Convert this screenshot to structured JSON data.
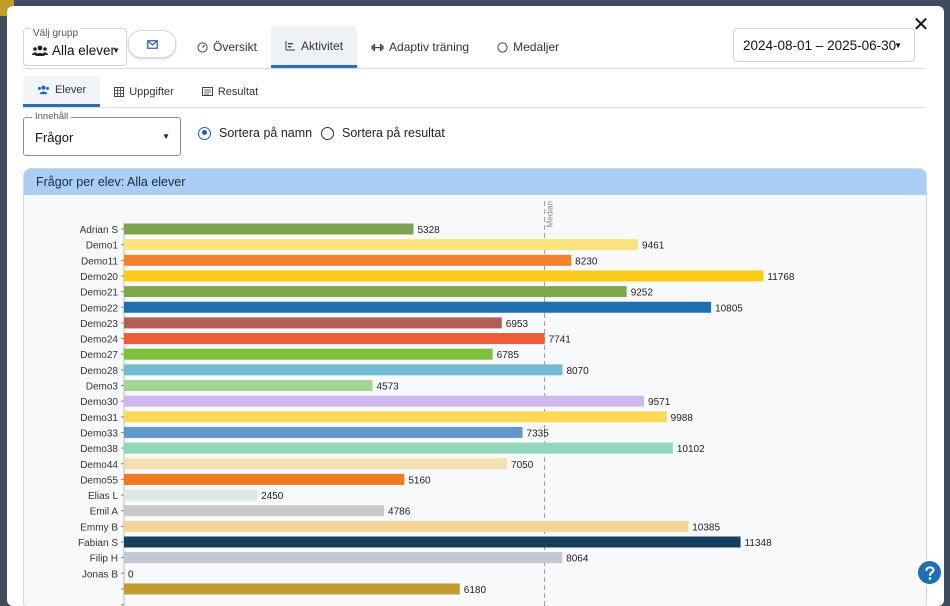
{
  "group_select": {
    "legend": "Välj grupp",
    "value": "Alla elever",
    "icon": "users-icon"
  },
  "mail_button": {
    "icon": "mail-icon"
  },
  "main_tabs": [
    {
      "label": "Översikt",
      "icon": "gauge-icon",
      "active": false
    },
    {
      "label": "Aktivitet",
      "icon": "bar-chart-icon",
      "active": true
    },
    {
      "label": "Adaptiv träning",
      "icon": "dumbbell-icon",
      "active": false
    },
    {
      "label": "Medaljer",
      "icon": "circle-icon",
      "active": false
    }
  ],
  "date_range": {
    "value": "2024-08-01 – 2025-06-30"
  },
  "sub_tabs": [
    {
      "label": "Elever",
      "icon": "users-icon",
      "active": true
    },
    {
      "label": "Uppgifter",
      "icon": "table-icon",
      "active": false
    },
    {
      "label": "Resultat",
      "icon": "list-icon",
      "active": false
    }
  ],
  "content_select": {
    "legend": "Innehåll",
    "value": "Frågor"
  },
  "sort_options": {
    "by_name": {
      "label": "Sortera på namn",
      "selected": true
    },
    "by_result": {
      "label": "Sortera på resultat",
      "selected": false
    }
  },
  "chart": {
    "title": "Frågor per elev: Alla elever"
  },
  "chart_data": {
    "type": "bar",
    "orientation": "horizontal",
    "title": "Frågor per elev: Alla elever",
    "median_label": "Median",
    "median_value": 7741,
    "xlim": [
      0,
      12000
    ],
    "grid": false,
    "categories": [
      "Adrian S",
      "Demo1",
      "Demo11",
      "Demo20",
      "Demo21",
      "Demo22",
      "Demo23",
      "Demo24",
      "Demo27",
      "Demo28",
      "Demo3",
      "Demo30",
      "Demo31",
      "Demo33",
      "Demo38",
      "Demo44",
      "Demo55",
      "Elias L",
      "Emil A",
      "Emmy B",
      "Fabian S",
      "Filip H",
      "Jonas B",
      "",
      ""
    ],
    "values": [
      5328,
      9461,
      8230,
      11768,
      9252,
      10805,
      6953,
      7741,
      6785,
      8070,
      4573,
      9571,
      9988,
      7335,
      10102,
      7050,
      5160,
      2450,
      4786,
      10385,
      11348,
      8064,
      0,
      6180,
      0
    ],
    "value_labels": [
      "5328",
      "9461",
      "8230",
      "11768",
      "9252",
      "10805",
      "6953",
      "7741",
      "6785",
      "8070",
      "4573",
      "9571",
      "9988",
      "7335",
      "10102",
      "7050",
      "5160",
      "2450",
      "4786",
      "10385",
      "11348",
      "8064",
      "0",
      "6180",
      ""
    ],
    "colors": [
      "#7ea350",
      "#fbe37f",
      "#f0822b",
      "#fbcb19",
      "#80a650",
      "#1f6fb0",
      "#b35e55",
      "#ee5d3a",
      "#7fbf3f",
      "#75bad5",
      "#a4d392",
      "#cfb7f0",
      "#fdd955",
      "#6097cc",
      "#92d6bb",
      "#f4dfb0",
      "#ef7a22",
      "#dce8e4",
      "#c9c9c9",
      "#f2d596",
      "#163e5f",
      "#c2c8d4",
      "#bbbbbb",
      "#c19a30",
      "#cccccc"
    ]
  },
  "help_button": {
    "icon": "question-icon"
  },
  "close_button": {
    "icon": "close-icon",
    "label": "✕"
  }
}
